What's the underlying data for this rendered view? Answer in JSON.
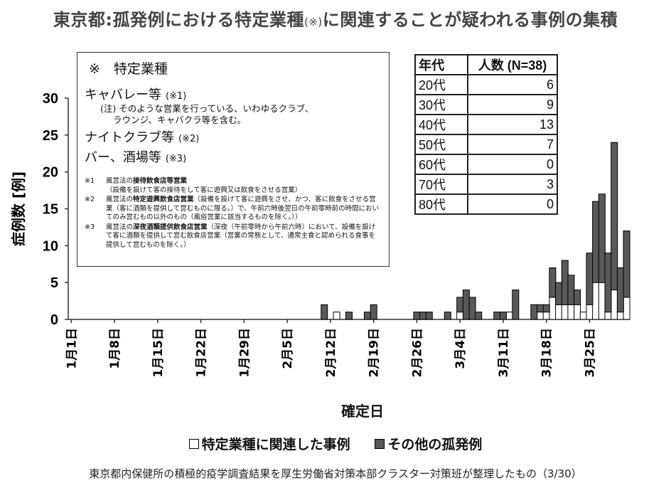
{
  "title": {
    "main": "東京都:孤発例における特定業種",
    "mark": "(※)",
    "rest": "に関連することが疑われる事例の集積"
  },
  "notes": {
    "heading": "※　特定業種",
    "categories": [
      {
        "name": "キャバレー等",
        "ref": "(※1)",
        "sub": [
          "(注) そのような営業を行っている、いわゆるクラブ、",
          "ラウンジ、キャバクラ等を含む。"
        ]
      },
      {
        "name": "ナイトクラブ等",
        "ref": "(※2)",
        "sub": []
      },
      {
        "name": "バー、酒場等",
        "ref": "(※3)",
        "sub": []
      }
    ],
    "fine": [
      {
        "mark": "※1",
        "pre": "風営法の",
        "bold": "接待飲食店等営業",
        "post": "（設備を設けて客の接待をして客に遊興又は飲食をさせる営業）"
      },
      {
        "mark": "※2",
        "pre": "風営法の",
        "bold": "特定遊興飲食店営業",
        "post": "（設備を設けて客に遊興をさせ、かつ、客に飲食をさせる営業（客に酒類を提供して営むものに限る。）で、午前六時後翌日の午前零時前の時間においてのみ営むもの以外のもの（風俗営業に該当するものを除く。））"
      },
      {
        "mark": "※3",
        "pre": "風営法の",
        "bold": "深夜酒類提供飲食店営業",
        "post": "（深夜（午前零時から午前六時）において、設備を設けて客に酒類を提供して営む飲食店営業（営業の常態として、通常主食と認められる食事を提供して営むものを除く。）"
      }
    ]
  },
  "age_table": {
    "header": [
      "年代",
      "人数 (N=38)"
    ],
    "rows": [
      {
        "age": "20代",
        "count": "6"
      },
      {
        "age": "30代",
        "count": "9"
      },
      {
        "age": "40代",
        "count": "13"
      },
      {
        "age": "50代",
        "count": "7"
      },
      {
        "age": "60代",
        "count": "0"
      },
      {
        "age": "70代",
        "count": "3"
      },
      {
        "age": "80代",
        "count": "0"
      }
    ]
  },
  "legend": {
    "related": "特定業種に関連した事例",
    "other": "その他の孤発例",
    "related_color": "#ffffff",
    "other_color": "#595959"
  },
  "footer": "東京都内保健所の積極的疫学調査結果を厚生労働省対策本部クラスター対策班が整理したもの（3/30）",
  "chart_data": {
    "type": "bar",
    "stacked": true,
    "x_start": "1月1日",
    "x_tick_labels": [
      "1月1日",
      "1月8日",
      "1月15日",
      "1月22日",
      "1月29日",
      "2月5日",
      "2月12日",
      "2月19日",
      "2月26日",
      "3月4日",
      "3月11日",
      "3月18日",
      "3月25日"
    ],
    "xlabel": "確定日",
    "ylabel": "症例数 [例]",
    "ylim": [
      0,
      30
    ],
    "yticks": [
      0,
      5,
      10,
      15,
      20,
      25,
      30
    ],
    "series": [
      {
        "name": "特定業種に関連した事例",
        "color": "#ffffff",
        "points": [
          [
            "2月13日",
            1
          ],
          [
            "3月4日",
            1
          ],
          [
            "3月12日",
            1
          ],
          [
            "3月17日",
            1
          ],
          [
            "3月18日",
            1
          ],
          [
            "3月19日",
            3
          ],
          [
            "3月20日",
            2
          ],
          [
            "3月21日",
            2
          ],
          [
            "3月22日",
            2
          ],
          [
            "3月23日",
            2
          ],
          [
            "3月24日",
            1
          ],
          [
            "3月25日",
            2
          ],
          [
            "3月26日",
            5
          ],
          [
            "3月27日",
            5
          ],
          [
            "3月28日",
            1
          ],
          [
            "3月29日",
            4
          ],
          [
            "3月30日",
            1
          ],
          [
            "3月31日",
            3
          ]
        ]
      },
      {
        "name": "その他の孤発例",
        "color": "#595959",
        "points": [
          [
            "2月11日",
            2
          ],
          [
            "2月15日",
            1
          ],
          [
            "2月18日",
            1
          ],
          [
            "2月19日",
            2
          ],
          [
            "2月26日",
            1
          ],
          [
            "2月27日",
            1
          ],
          [
            "2月28日",
            1
          ],
          [
            "3月2日",
            1
          ],
          [
            "3月4日",
            2
          ],
          [
            "3月5日",
            4
          ],
          [
            "3月6日",
            3
          ],
          [
            "3月7日",
            1
          ],
          [
            "3月10日",
            1
          ],
          [
            "3月11日",
            1
          ],
          [
            "3月13日",
            4
          ],
          [
            "3月16日",
            2
          ],
          [
            "3月17日",
            1
          ],
          [
            "3月18日",
            1
          ],
          [
            "3月19日",
            4
          ],
          [
            "3月20日",
            3
          ],
          [
            "3月21日",
            6
          ],
          [
            "3月22日",
            4
          ],
          [
            "3月23日",
            2
          ],
          [
            "3月25日",
            7
          ],
          [
            "3月26日",
            11
          ],
          [
            "3月27日",
            12
          ],
          [
            "3月28日",
            8
          ],
          [
            "3月29日",
            20
          ],
          [
            "3月30日",
            6
          ],
          [
            "3月31日",
            9
          ]
        ]
      }
    ]
  }
}
